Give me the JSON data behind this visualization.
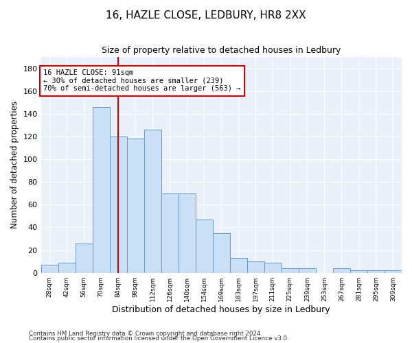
{
  "title1": "16, HAZLE CLOSE, LEDBURY, HR8 2XX",
  "title2": "Size of property relative to detached houses in Ledbury",
  "xlabel": "Distribution of detached houses by size in Ledbury",
  "ylabel": "Number of detached properties",
  "categories": [
    "28sqm",
    "42sqm",
    "56sqm",
    "70sqm",
    "84sqm",
    "98sqm",
    "112sqm",
    "126sqm",
    "140sqm",
    "154sqm",
    "169sqm",
    "183sqm",
    "197sqm",
    "211sqm",
    "225sqm",
    "239sqm",
    "253sqm",
    "267sqm",
    "281sqm",
    "295sqm",
    "309sqm"
  ],
  "values": [
    7,
    9,
    26,
    146,
    120,
    118,
    126,
    70,
    70,
    47,
    35,
    13,
    10,
    9,
    4,
    4,
    0,
    4,
    2,
    2,
    2
  ],
  "bar_color": "#cce0f5",
  "bar_edge_color": "#6699cc",
  "vline_color": "#cc0000",
  "annotation_text": "16 HAZLE CLOSE: 91sqm\n← 30% of detached houses are smaller (239)\n70% of semi-detached houses are larger (563) →",
  "annotation_box_color": "#ffffff",
  "annotation_box_edge": "#cc0000",
  "ylim": [
    0,
    190
  ],
  "yticks": [
    0,
    20,
    40,
    60,
    80,
    100,
    120,
    140,
    160,
    180
  ],
  "footer1": "Contains HM Land Registry data © Crown copyright and database right 2024.",
  "footer2": "Contains public sector information licensed under the Open Government Licence v3.0.",
  "bg_color": "#e8f0fa",
  "fig_bg_color": "#ffffff",
  "bin_width": 14,
  "vline_bin_index": 4
}
